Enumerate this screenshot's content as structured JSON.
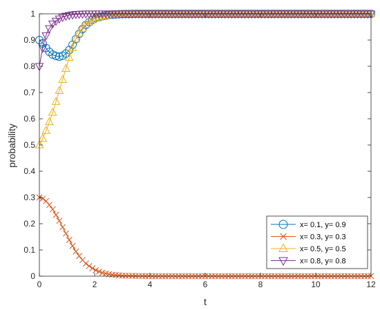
{
  "chart_data": {
    "type": "line",
    "xlabel": "t",
    "ylabel": "probability",
    "xlim": [
      0,
      12
    ],
    "ylim": [
      0,
      1
    ],
    "xticks": [
      0,
      2,
      4,
      6,
      8,
      10,
      12
    ],
    "yticks": [
      0,
      0.1,
      0.2,
      0.3,
      0.4,
      0.5,
      0.6,
      0.7,
      0.8,
      0.9,
      1
    ],
    "ytick_labels": [
      "0",
      "0.1",
      "0.2",
      "0.3",
      "0.4",
      "0.5",
      "0.6",
      "0.7",
      "0.8",
      "0.9",
      "1"
    ],
    "grid": false,
    "legend_position": "bottom-right",
    "series": [
      {
        "name": "x= 0.1, y= 0.9",
        "marker": "circle",
        "color": "#0072BD",
        "x": [
          0,
          0.1,
          0.2,
          0.3,
          0.5,
          0.7,
          0.9,
          1.1,
          1.3,
          1.5,
          1.7,
          2.0,
          2.5,
          3.0,
          3.5,
          4.0,
          4.5,
          5.0,
          6.0,
          7.0,
          8.0,
          9.0,
          10.0,
          11.0,
          12.0
        ],
        "values": [
          0.9,
          0.89,
          0.876,
          0.86,
          0.843,
          0.836,
          0.842,
          0.864,
          0.9,
          0.934,
          0.96,
          0.983,
          0.996,
          0.999,
          1.0,
          1.0,
          1.0,
          1.0,
          1.0,
          1.0,
          1.0,
          1.0,
          1.0,
          1.0,
          1.0
        ]
      },
      {
        "name": "x= 0.3, y= 0.3",
        "marker": "x",
        "color": "#D95319",
        "x": [
          0,
          0.1,
          0.2,
          0.3,
          0.5,
          0.7,
          0.9,
          1.1,
          1.3,
          1.5,
          1.7,
          2.0,
          2.3,
          2.6,
          3.0,
          3.5,
          4.0,
          4.5,
          5.0,
          6.0,
          7.0,
          8.0,
          9.0,
          10.0,
          11.0,
          12.0
        ],
        "values": [
          0.3,
          0.297,
          0.29,
          0.28,
          0.252,
          0.215,
          0.175,
          0.134,
          0.097,
          0.068,
          0.046,
          0.024,
          0.012,
          0.006,
          0.002,
          0.001,
          0.0,
          0.0,
          0.0,
          0.0,
          0.0,
          0.0,
          0.0,
          0.0,
          0.0,
          0.0
        ]
      },
      {
        "name": "x= 0.5, y= 0.5",
        "marker": "triangle-up",
        "color": "#EDB120",
        "x": [
          0,
          0.1,
          0.2,
          0.3,
          0.5,
          0.7,
          0.9,
          1.1,
          1.3,
          1.5,
          1.7,
          2.0,
          2.3,
          2.6,
          3.0,
          3.5,
          4.0,
          4.5,
          5.0,
          6.0,
          7.0,
          8.0,
          9.0,
          10.0,
          11.0,
          12.0
        ],
        "values": [
          0.5,
          0.52,
          0.545,
          0.57,
          0.63,
          0.7,
          0.77,
          0.84,
          0.9,
          0.938,
          0.962,
          0.982,
          0.992,
          0.997,
          0.999,
          1.0,
          1.0,
          1.0,
          1.0,
          1.0,
          1.0,
          1.0,
          1.0,
          1.0,
          1.0,
          1.0
        ]
      },
      {
        "name": "x= 0.8, y= 0.8",
        "marker": "triangle-down",
        "color": "#7E2F8E",
        "x": [
          0,
          0.1,
          0.2,
          0.3,
          0.5,
          0.7,
          0.9,
          1.1,
          1.3,
          1.5,
          1.7,
          2.0,
          2.5,
          3.0,
          3.5,
          4.0,
          4.5,
          5.0,
          6.0,
          7.0,
          8.0,
          9.0,
          10.0,
          11.0,
          12.0
        ],
        "values": [
          0.8,
          0.86,
          0.905,
          0.935,
          0.965,
          0.98,
          0.99,
          0.995,
          0.998,
          0.999,
          1.0,
          1.0,
          1.0,
          1.0,
          1.0,
          1.0,
          1.0,
          1.0,
          1.0,
          1.0,
          1.0,
          1.0,
          1.0,
          1.0,
          1.0
        ]
      }
    ]
  }
}
